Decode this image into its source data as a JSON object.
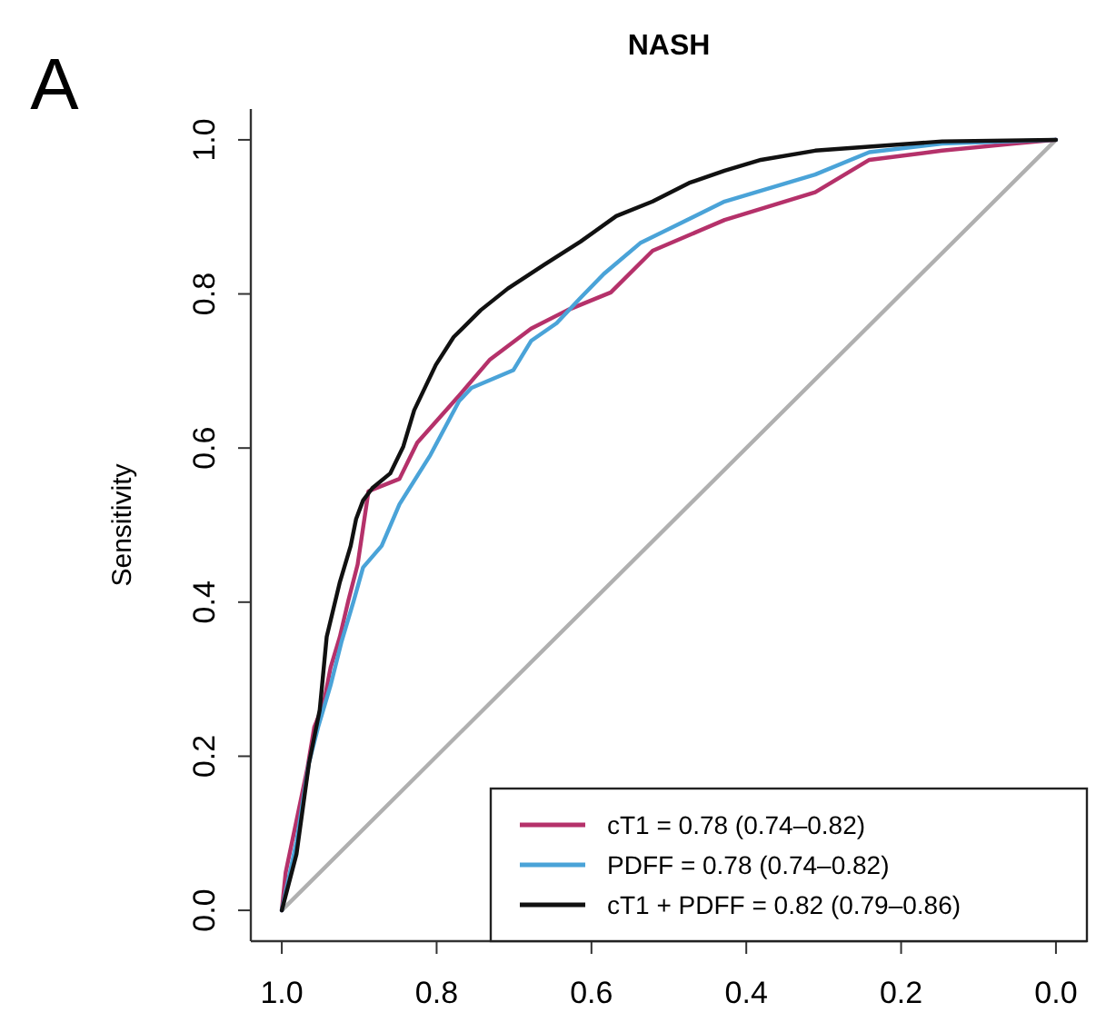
{
  "chart_data": {
    "type": "line",
    "title": "NASH",
    "ylabel": "Sensitivity",
    "annotations": [
      "A"
    ],
    "xlim": [
      1.04,
      -0.04
    ],
    "ylim": [
      -0.04,
      1.04
    ],
    "xticks": [
      {
        "value": 1,
        "label": "1.0"
      },
      0.8,
      0.6,
      0.4,
      0.2,
      {
        "value": 0,
        "label": "0.0"
      }
    ],
    "yticks": [
      {
        "value": 0,
        "label": "0.0"
      },
      0.2,
      0.4,
      0.6,
      0.8,
      {
        "value": 1,
        "label": "1.0"
      }
    ],
    "grid": false,
    "legend": "bottom right",
    "marker": "none",
    "line_style": "solid",
    "series": [
      {
        "type": "line",
        "color": "#b0b0b0",
        "x": [
          1,
          0
        ],
        "values": [
          0,
          1
        ]
      },
      {
        "name": "cT1 = 0.78 (0.74–0.82)",
        "color": "#b5316a",
        "x": [
          1,
          0.995,
          0.967,
          0.958,
          0.946,
          0.937,
          0.925,
          0.914,
          0.902,
          0.888,
          0.848,
          0.825,
          0.771,
          0.731,
          0.678,
          0.631,
          0.575,
          0.521,
          0.428,
          0.311,
          0.241,
          0.147,
          0.054,
          0
        ],
        "values": [
          0,
          0.049,
          0.184,
          0.238,
          0.268,
          0.315,
          0.355,
          0.402,
          0.449,
          0.544,
          0.56,
          0.607,
          0.668,
          0.715,
          0.755,
          0.779,
          0.802,
          0.856,
          0.896,
          0.932,
          0.974,
          0.986,
          0.995,
          1
        ]
      },
      {
        "name": "PDFF = 0.78 (0.74–0.82)",
        "color": "#4aa3d8",
        "x": [
          1,
          0.981,
          0.965,
          0.953,
          0.937,
          0.923,
          0.907,
          0.895,
          0.871,
          0.848,
          0.808,
          0.771,
          0.755,
          0.701,
          0.678,
          0.645,
          0.614,
          0.584,
          0.537,
          0.428,
          0.311,
          0.241,
          0.147,
          0
        ],
        "values": [
          0,
          0.089,
          0.191,
          0.238,
          0.292,
          0.348,
          0.402,
          0.445,
          0.473,
          0.527,
          0.591,
          0.661,
          0.678,
          0.701,
          0.739,
          0.762,
          0.795,
          0.826,
          0.866,
          0.92,
          0.955,
          0.984,
          0.995,
          1
        ]
      },
      {
        "name": "cT1 + PDFF = 0.82 (0.79–0.86)",
        "color": "#111111",
        "x": [
          1,
          0.981,
          0.965,
          0.951,
          0.942,
          0.925,
          0.911,
          0.904,
          0.895,
          0.883,
          0.86,
          0.843,
          0.829,
          0.801,
          0.778,
          0.743,
          0.708,
          0.661,
          0.614,
          0.568,
          0.521,
          0.474,
          0.428,
          0.381,
          0.311,
          0.147,
          0
        ],
        "values": [
          0,
          0.073,
          0.19,
          0.26,
          0.355,
          0.426,
          0.473,
          0.508,
          0.532,
          0.548,
          0.567,
          0.602,
          0.649,
          0.708,
          0.744,
          0.779,
          0.807,
          0.838,
          0.868,
          0.901,
          0.92,
          0.944,
          0.96,
          0.974,
          0.986,
          0.998,
          1
        ]
      }
    ]
  }
}
